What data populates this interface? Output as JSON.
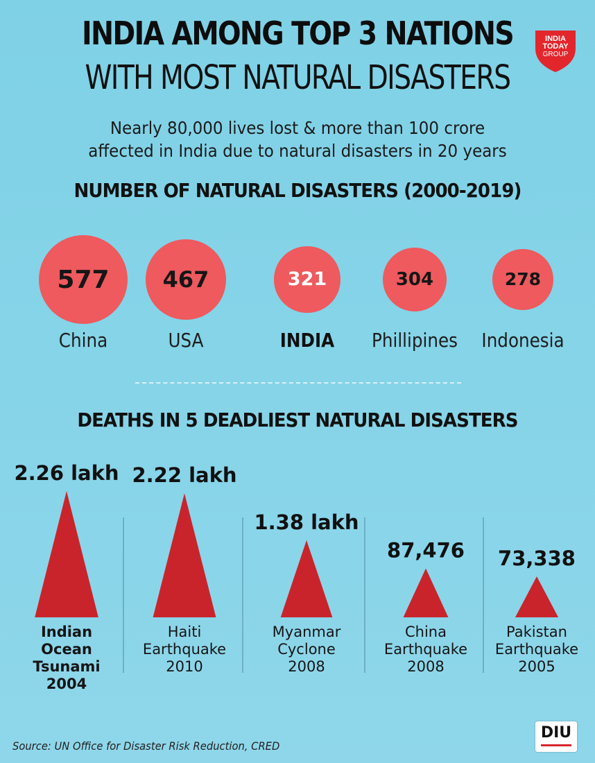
{
  "header": {
    "title_line1": "INDIA AMONG TOP 3 NATIONS",
    "title_line2": "WITH MOST NATURAL DISASTERS",
    "subtitle_line1": "Nearly 80,000 lives lost & more than 100 crore",
    "subtitle_line2": "affected in India due to natural disasters in 20 years",
    "logo": {
      "line1": "INDIA",
      "line2": "TODAY",
      "line3": "GROUP",
      "color": "#e2262c"
    }
  },
  "sections": {
    "disasters_title": "NUMBER OF NATURAL DISASTERS (2000-2019)",
    "deaths_title": "DEATHS  IN 5 DEADLIEST NATURAL DISASTERS"
  },
  "chart_data": [
    {
      "type": "bubble",
      "title": "NUMBER OF NATURAL DISASTERS (2000-2019)",
      "categories": [
        "China",
        "USA",
        "INDIA",
        "Phillipines",
        "Indonesia"
      ],
      "values": [
        577,
        467,
        321,
        304,
        278
      ],
      "value_labels": [
        "577",
        "467",
        "321",
        "304",
        "278"
      ],
      "highlight": "INDIA",
      "color": "#ee5a5e",
      "highlight_text_color": "#ffffff"
    },
    {
      "type": "bar",
      "marker": "triangle",
      "title": "DEATHS  IN 5 DEADLIEST NATURAL DISASTERS",
      "categories": [
        [
          "Indian",
          "Ocean",
          "Tsunami",
          "2004"
        ],
        [
          "Haiti",
          "Earthquake",
          "2010"
        ],
        [
          "Myanmar",
          "Cyclone",
          "2008"
        ],
        [
          "China",
          "Earthquake",
          "2008"
        ],
        [
          "Pakistan",
          "Earthquake",
          "2005"
        ]
      ],
      "values": [
        226000,
        222000,
        138000,
        87476,
        73338
      ],
      "value_labels": [
        "2.26 lakh",
        "2.22 lakh",
        "1.38 lakh",
        "87,476",
        "73,338"
      ],
      "highlight_index": 0,
      "color": "#c9242c"
    }
  ],
  "footer": {
    "source": "Source: UN Office for Disaster Risk Reduction, CRED",
    "badge": "DIU"
  }
}
